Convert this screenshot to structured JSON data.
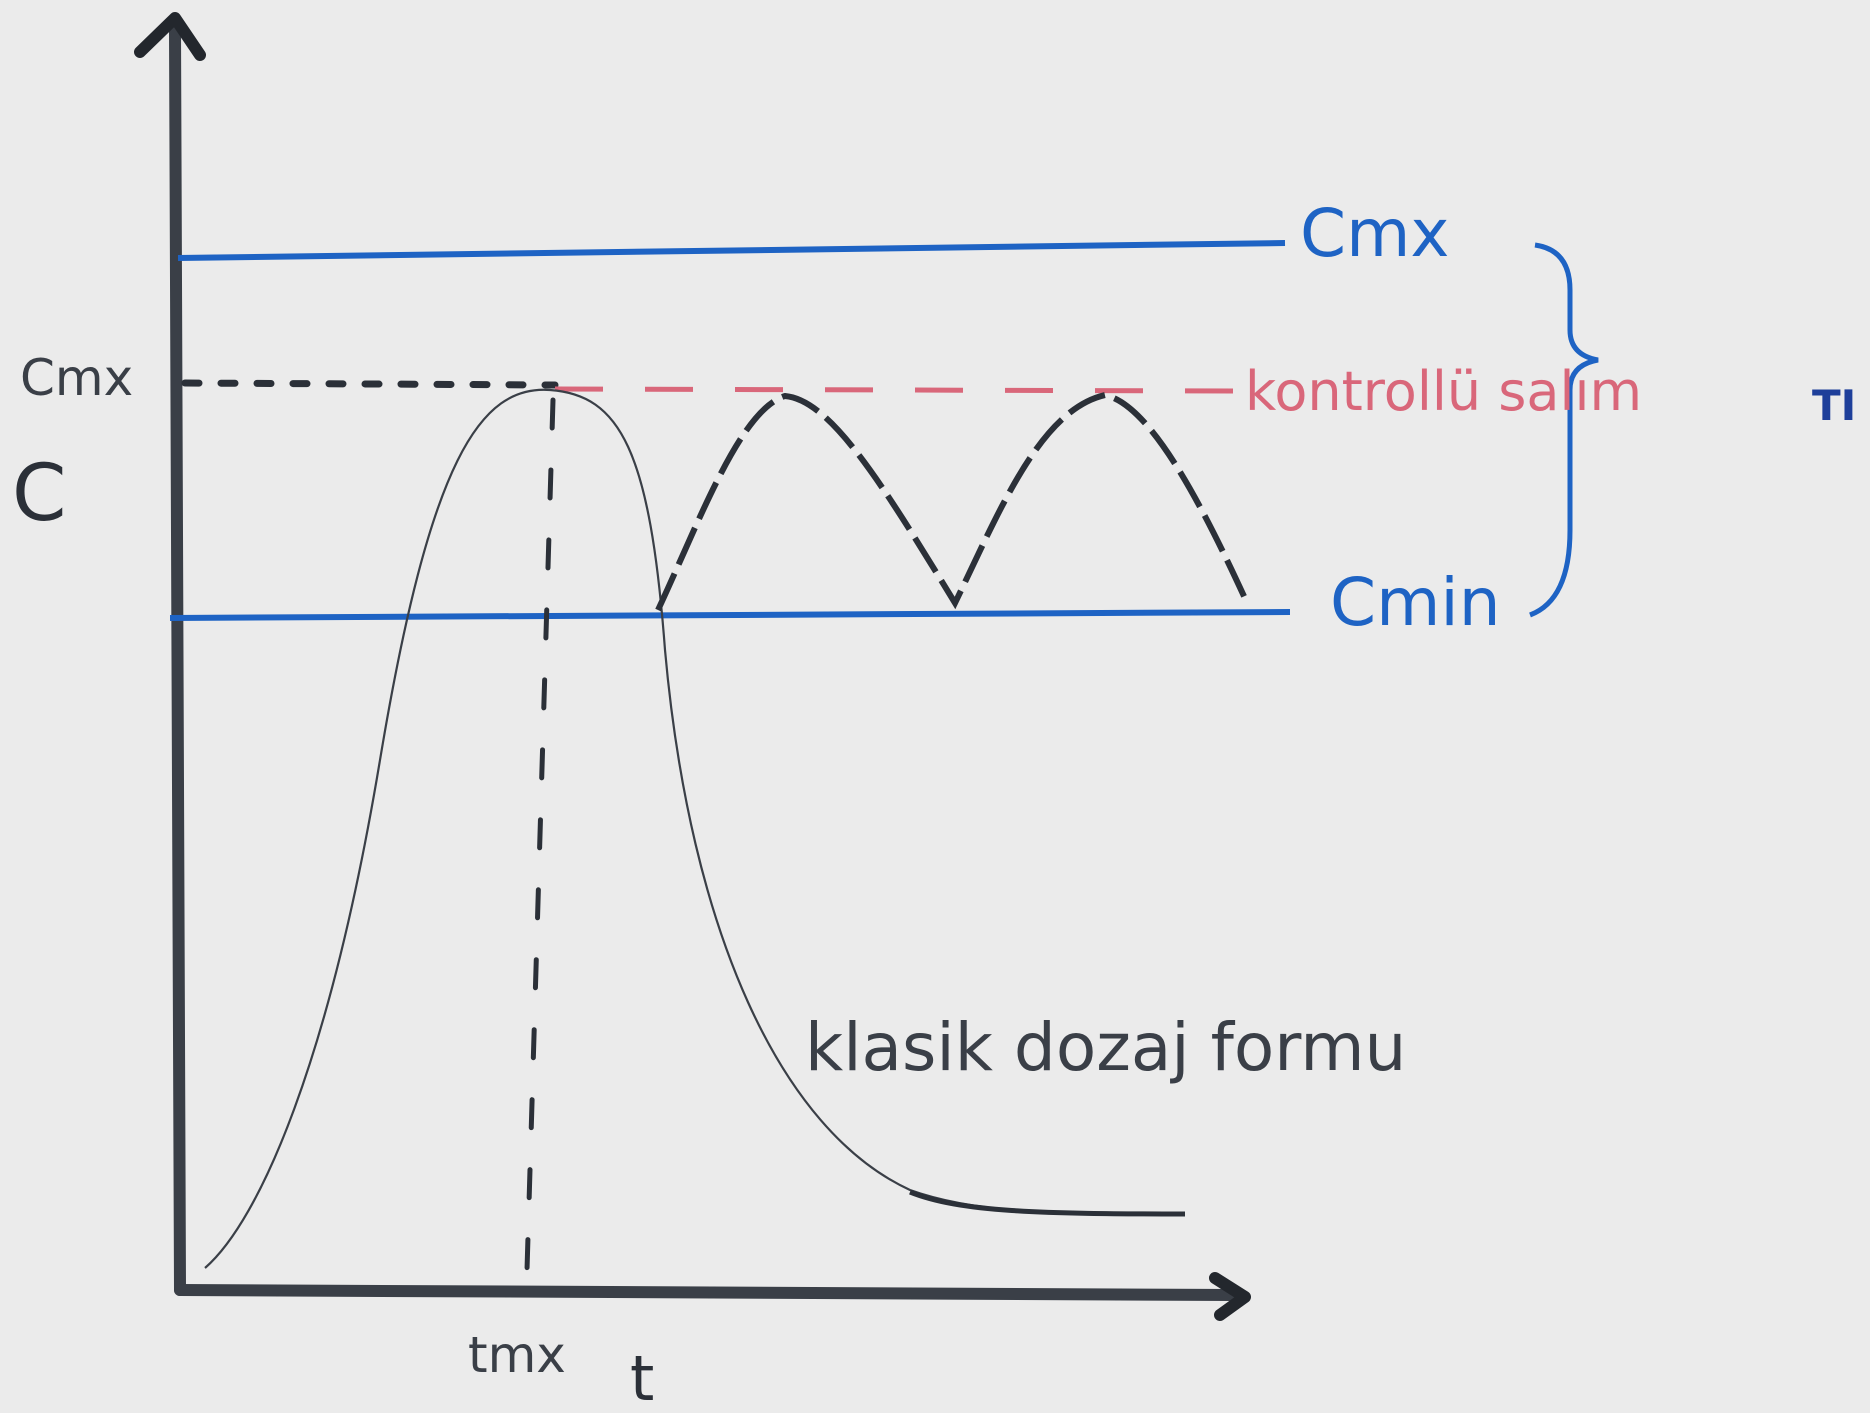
{
  "axes": {
    "y_label": "C",
    "x_label": "t"
  },
  "levels": {
    "c_max_line_label": "Cmx",
    "c_min_line_label": "Cmin",
    "controlled_release_label": "kontrollü salım",
    "therapeutic_index_label": "TI"
  },
  "peak": {
    "c_peak_label": "Cmx",
    "t_peak_label": "tmx"
  },
  "curves": {
    "classic_label": "klasik dozaj formu"
  },
  "colors": {
    "background": "#ebebeb",
    "ink": "#2b3038",
    "blue": "#1e63c4",
    "red": "#d9677a"
  }
}
